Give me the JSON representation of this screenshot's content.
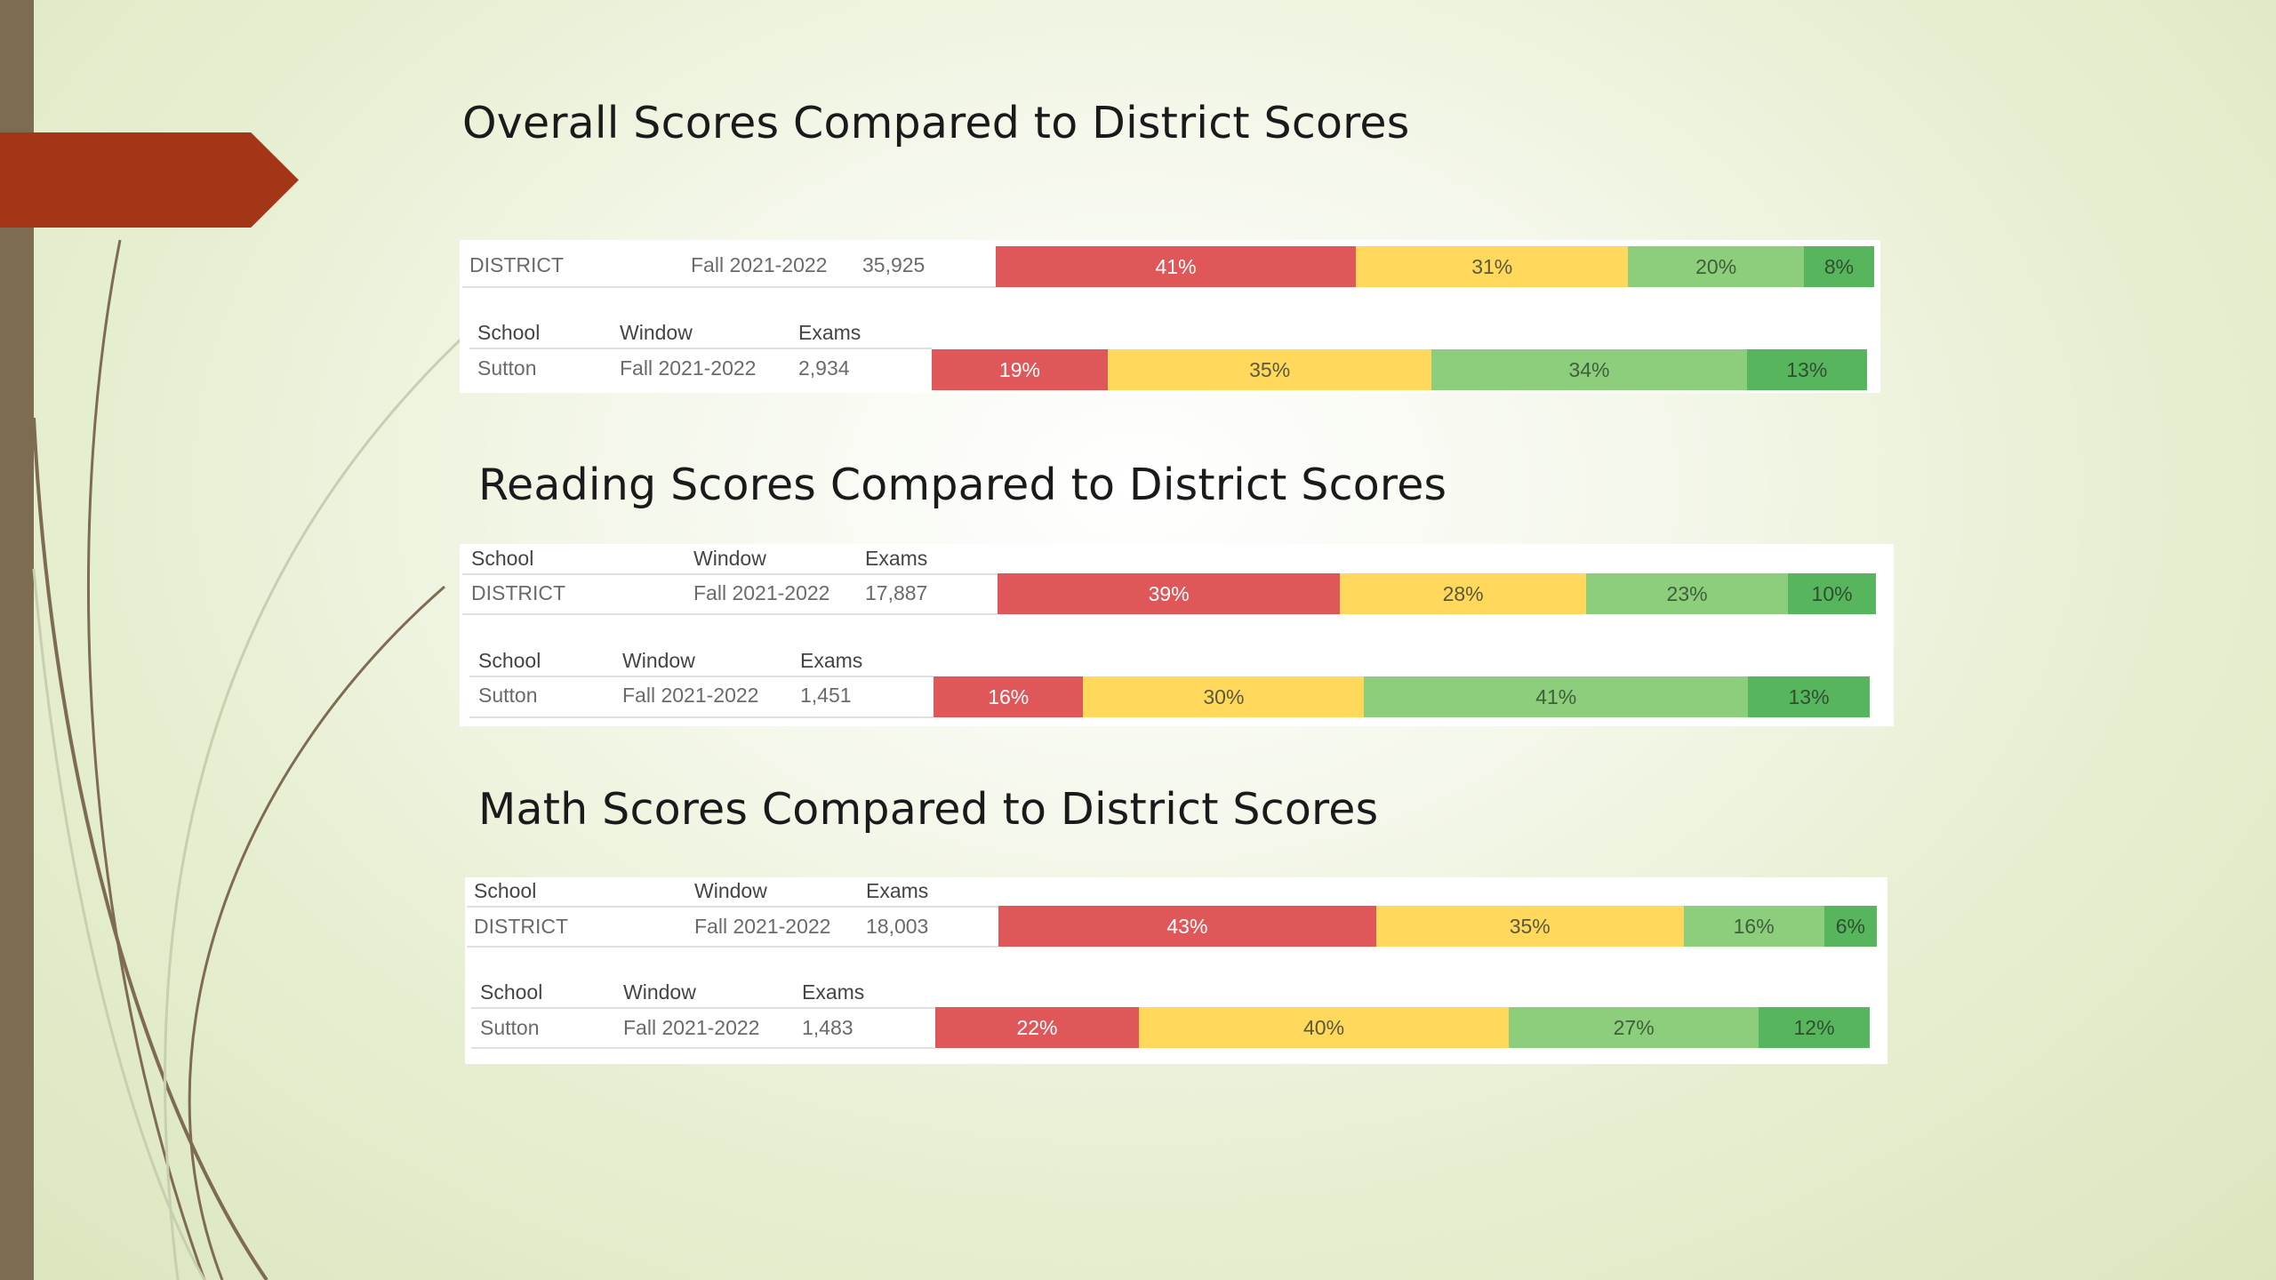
{
  "slide": {
    "overall_title": "Overall Scores Compared to District Scores",
    "reading_title": "Reading Scores Compared to District Scores",
    "math_title": "Math Scores Compared to District Scores"
  },
  "colors": {
    "level1": "#e05759",
    "level2": "#ffd85c",
    "level3": "#8dce7c",
    "level4": "#57b65d",
    "accent_tab": "#a53517",
    "sidebar": "#7d6b52"
  },
  "headers": {
    "school": "School",
    "window": "Window",
    "exams": "Exams"
  },
  "overall": {
    "district": {
      "school": "DISTRICT",
      "window": "Fall 2021-2022",
      "exams": "35,925",
      "bands": [
        41,
        31,
        20,
        8
      ],
      "labels": [
        "41%",
        "31%",
        "20%",
        "8%"
      ]
    },
    "school": {
      "school": "Sutton",
      "window": "Fall 2021-2022",
      "exams": "2,934",
      "bands": [
        19,
        35,
        34,
        13
      ],
      "labels": [
        "19%",
        "35%",
        "34%",
        "13%"
      ]
    }
  },
  "reading": {
    "district": {
      "school": "DISTRICT",
      "window": "Fall 2021-2022",
      "exams": "17,887",
      "bands": [
        39,
        28,
        23,
        10
      ],
      "labels": [
        "39%",
        "28%",
        "23%",
        "10%"
      ]
    },
    "school": {
      "school": "Sutton",
      "window": "Fall 2021-2022",
      "exams": "1,451",
      "bands": [
        16,
        30,
        41,
        13
      ],
      "labels": [
        "16%",
        "30%",
        "41%",
        "13%"
      ]
    }
  },
  "math": {
    "district": {
      "school": "DISTRICT",
      "window": "Fall 2021-2022",
      "exams": "18,003",
      "bands": [
        43,
        35,
        16,
        6
      ],
      "labels": [
        "43%",
        "35%",
        "16%",
        "6%"
      ]
    },
    "school": {
      "school": "Sutton",
      "window": "Fall 2021-2022",
      "exams": "1,483",
      "bands": [
        22,
        40,
        27,
        12
      ],
      "labels": [
        "22%",
        "40%",
        "27%",
        "12%"
      ]
    }
  }
}
